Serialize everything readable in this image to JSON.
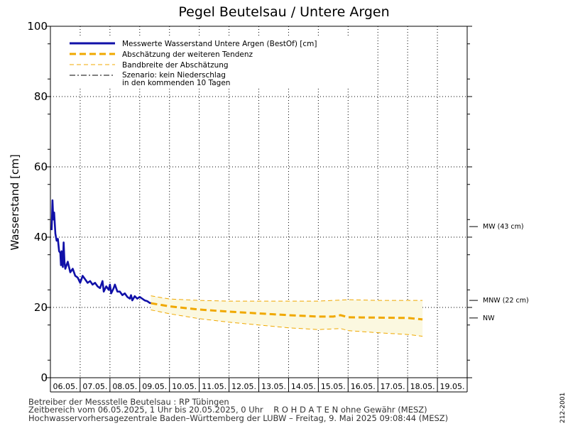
{
  "chart_data": {
    "type": "line",
    "title": "Pegel Beutelsau / Untere Argen",
    "ylabel": "Wasserstand [cm]",
    "ylim": [
      0,
      100
    ],
    "yticks": [
      0,
      20,
      40,
      60,
      80,
      100
    ],
    "grid": true,
    "xlim": [
      "2025-05-06T00:00",
      "2025-05-20T00:00"
    ],
    "date_labels": [
      {
        "date": "2025-05-06T12:00",
        "label": "06.05."
      },
      {
        "date": "2025-05-07T12:00",
        "label": "07.05."
      },
      {
        "date": "2025-05-08T12:00",
        "label": "08.05."
      },
      {
        "date": "2025-05-09T12:00",
        "label": "09.05."
      },
      {
        "date": "2025-05-10T12:00",
        "label": "10.05."
      },
      {
        "date": "2025-05-11T12:00",
        "label": "11.05."
      },
      {
        "date": "2025-05-12T12:00",
        "label": "12.05."
      },
      {
        "date": "2025-05-13T12:00",
        "label": "13.05."
      },
      {
        "date": "2025-05-14T12:00",
        "label": "14.05."
      },
      {
        "date": "2025-05-15T12:00",
        "label": "15.05."
      },
      {
        "date": "2025-05-16T12:00",
        "label": "16.05."
      },
      {
        "date": "2025-05-17T12:00",
        "label": "17.05."
      },
      {
        "date": "2025-05-18T12:00",
        "label": "18.05."
      },
      {
        "date": "2025-05-19T12:00",
        "label": "19.05."
      }
    ],
    "legend": {
      "placement": "top-left",
      "entries": [
        {
          "label": "Messwerte Wasserstand Untere Argen   (BestOf)   [cm]",
          "style": "solid",
          "color": "#1010a8"
        },
        {
          "label": "Abschätzung der weiteren Tendenz",
          "style": "dashed-thick",
          "color": "#f0a800"
        },
        {
          "label": "Bandbreite der Abschätzung",
          "style": "dashed-thin",
          "color": "#f0a800"
        },
        {
          "label": "Szenario: kein Niederschlag",
          "label2": "in den kommenden 10 Tagen",
          "style": "dashdot",
          "color": "#000000"
        }
      ]
    },
    "reference_lines": [
      {
        "label": "MW (43 cm)",
        "value": 43
      },
      {
        "label": "MNW (22 cm)",
        "value": 22
      },
      {
        "label": "NW",
        "value": 17
      }
    ],
    "series": [
      {
        "name": "Messwerte Wasserstand Untere Argen   (BestOf)   [cm]",
        "color": "#1010a8",
        "points": [
          [
            "2025-05-06T01:00",
            42
          ],
          [
            "2025-05-06T01:40",
            50.5
          ],
          [
            "2025-05-06T02:20",
            45
          ],
          [
            "2025-05-06T03:00",
            47
          ],
          [
            "2025-05-06T04:00",
            41
          ],
          [
            "2025-05-06T05:00",
            39
          ],
          [
            "2025-05-06T06:00",
            39.5
          ],
          [
            "2025-05-06T07:00",
            36
          ],
          [
            "2025-05-06T08:00",
            35.5
          ],
          [
            "2025-05-06T08:30",
            32
          ],
          [
            "2025-05-06T09:00",
            36
          ],
          [
            "2025-05-06T10:00",
            31.5
          ],
          [
            "2025-05-06T10:40",
            38.5
          ],
          [
            "2025-05-06T11:20",
            33
          ],
          [
            "2025-05-06T12:00",
            31
          ],
          [
            "2025-05-06T14:00",
            33
          ],
          [
            "2025-05-06T16:00",
            30
          ],
          [
            "2025-05-06T18:00",
            31
          ],
          [
            "2025-05-06T20:00",
            29
          ],
          [
            "2025-05-06T22:00",
            28.5
          ],
          [
            "2025-05-07T00:00",
            27
          ],
          [
            "2025-05-07T02:00",
            29
          ],
          [
            "2025-05-07T04:00",
            28
          ],
          [
            "2025-05-07T06:00",
            27
          ],
          [
            "2025-05-07T08:00",
            27.5
          ],
          [
            "2025-05-07T10:00",
            26.5
          ],
          [
            "2025-05-07T12:00",
            27
          ],
          [
            "2025-05-07T14:00",
            26
          ],
          [
            "2025-05-07T16:00",
            25.5
          ],
          [
            "2025-05-07T18:00",
            27.5
          ],
          [
            "2025-05-07T19:00",
            24.5
          ],
          [
            "2025-05-07T21:00",
            26
          ],
          [
            "2025-05-07T23:00",
            25
          ],
          [
            "2025-05-08T00:00",
            26.5
          ],
          [
            "2025-05-08T01:00",
            24
          ],
          [
            "2025-05-08T03:00",
            25.5
          ],
          [
            "2025-05-08T04:00",
            26.5
          ],
          [
            "2025-05-08T06:00",
            24.5
          ],
          [
            "2025-05-08T08:00",
            24.5
          ],
          [
            "2025-05-08T10:00",
            23.5
          ],
          [
            "2025-05-08T12:00",
            24
          ],
          [
            "2025-05-08T14:00",
            23
          ],
          [
            "2025-05-08T16:00",
            22.5
          ],
          [
            "2025-05-08T17:00",
            23.5
          ],
          [
            "2025-05-08T18:00",
            22
          ],
          [
            "2025-05-08T20:00",
            23.2
          ],
          [
            "2025-05-08T22:00",
            22.5
          ],
          [
            "2025-05-09T00:00",
            23
          ],
          [
            "2025-05-09T02:00",
            22.5
          ],
          [
            "2025-05-09T04:00",
            22
          ],
          [
            "2025-05-09T06:00",
            21.8
          ],
          [
            "2025-05-09T08:00",
            21.3
          ],
          [
            "2025-05-09T09:00",
            21.2
          ]
        ]
      },
      {
        "name": "Abschätzung der weiteren Tendenz",
        "color": "#f0a800",
        "points": [
          [
            "2025-05-09T09:00",
            21.2
          ],
          [
            "2025-05-10T00:00",
            20.3
          ],
          [
            "2025-05-11T00:00",
            19.4
          ],
          [
            "2025-05-12T00:00",
            18.8
          ],
          [
            "2025-05-13T00:00",
            18.3
          ],
          [
            "2025-05-14T00:00",
            17.8
          ],
          [
            "2025-05-15T00:00",
            17.4
          ],
          [
            "2025-05-15T12:00",
            17.4
          ],
          [
            "2025-05-15T18:00",
            17.8
          ],
          [
            "2025-05-16T00:00",
            17.2
          ],
          [
            "2025-05-17T00:00",
            17.1
          ],
          [
            "2025-05-18T00:00",
            17.0
          ],
          [
            "2025-05-18T12:00",
            16.6
          ]
        ]
      },
      {
        "name": "Bandbreite der Abschätzung (oben)",
        "color": "#f0a800",
        "points": [
          [
            "2025-05-09T09:00",
            23.3
          ],
          [
            "2025-05-10T00:00",
            22.4
          ],
          [
            "2025-05-11T00:00",
            22.0
          ],
          [
            "2025-05-12T00:00",
            21.8
          ],
          [
            "2025-05-13T00:00",
            21.8
          ],
          [
            "2025-05-14T00:00",
            21.8
          ],
          [
            "2025-05-15T00:00",
            21.8
          ],
          [
            "2025-05-16T00:00",
            22.2
          ],
          [
            "2025-05-17T00:00",
            22.0
          ],
          [
            "2025-05-18T00:00",
            22.0
          ],
          [
            "2025-05-18T12:00",
            22.0
          ]
        ]
      },
      {
        "name": "Bandbreite der Abschätzung (unten)",
        "color": "#f0a800",
        "points": [
          [
            "2025-05-09T09:00",
            19.3
          ],
          [
            "2025-05-10T00:00",
            18.2
          ],
          [
            "2025-05-11T00:00",
            16.8
          ],
          [
            "2025-05-12T00:00",
            15.8
          ],
          [
            "2025-05-13T00:00",
            15.0
          ],
          [
            "2025-05-14T00:00",
            14.2
          ],
          [
            "2025-05-15T00:00",
            13.7
          ],
          [
            "2025-05-15T18:00",
            14.0
          ],
          [
            "2025-05-16T00:00",
            13.4
          ],
          [
            "2025-05-17T00:00",
            12.8
          ],
          [
            "2025-05-18T00:00",
            12.3
          ],
          [
            "2025-05-18T12:00",
            11.8
          ]
        ]
      }
    ]
  },
  "footer": {
    "line1": "Betreiber der Messstelle Beutelsau : RP Tübingen",
    "line2": "Zeitbereich vom 06.05.2025, 1 Uhr bis 20.05.2025, 0 Uhr    R O H D A T E N ohne Gewähr (MESZ)",
    "line3": "Hochwasservorhersagezentrale Baden–Württemberg der LUBW – Freitag, 9. Mai 2025 09:08:44 (MESZ)"
  },
  "side_code": "212-2001",
  "colors": {
    "measured": "#1010a8",
    "forecast": "#f0a800",
    "band_fill": "#fbf8e0"
  }
}
